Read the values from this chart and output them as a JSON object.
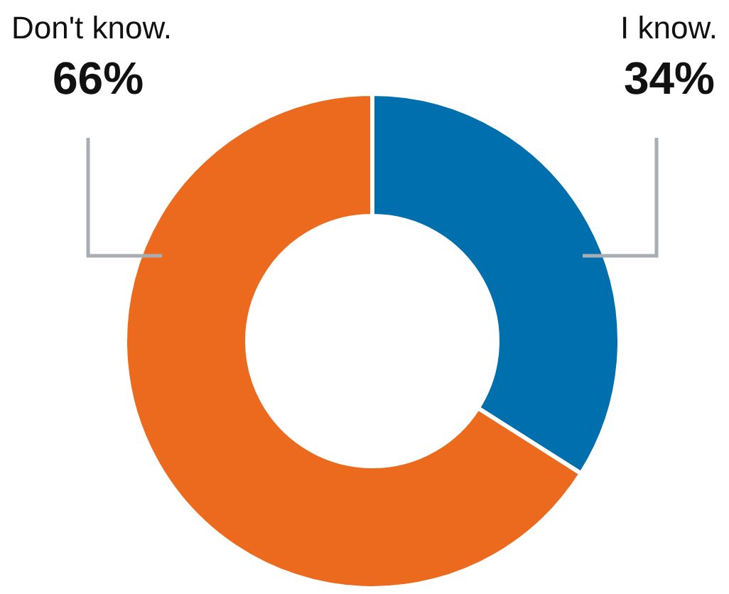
{
  "chart_data": {
    "type": "donut",
    "categories": [
      "I know.",
      "Don't know."
    ],
    "values": [
      34,
      66
    ],
    "colors": [
      "#006fad",
      "#eb6a1e"
    ],
    "value_labels": [
      "34%",
      "66%"
    ],
    "legend": false
  }
}
